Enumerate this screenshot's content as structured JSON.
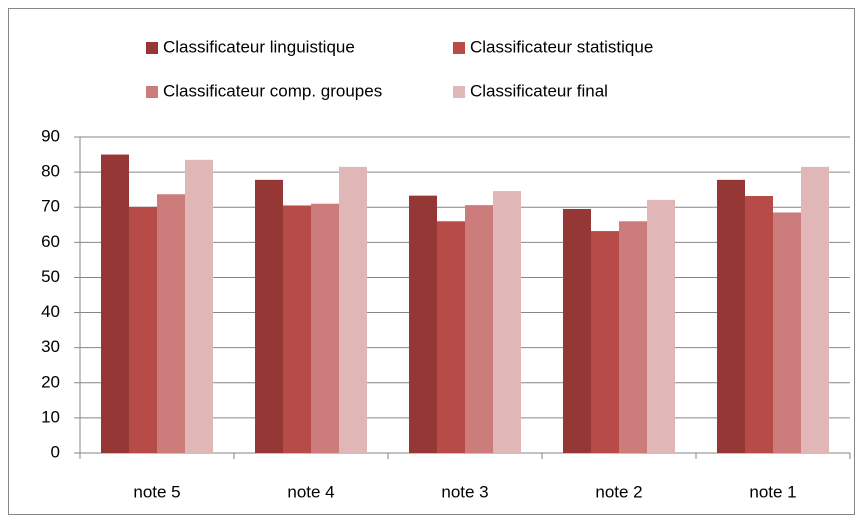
{
  "chart_data": {
    "type": "bar",
    "categories": [
      "note 5",
      "note 4",
      "note 3",
      "note 2",
      "note 1"
    ],
    "series": [
      {
        "name": "Classificateur linguistique",
        "color": "#953735",
        "values": [
          85,
          77.8,
          73.3,
          69.5,
          77.8
        ]
      },
      {
        "name": "Classificateur statistique",
        "color": "#b64b48",
        "values": [
          70.1,
          70.5,
          66,
          63.2,
          73.2
        ]
      },
      {
        "name": "Classificateur comp. groupes",
        "color": "#cc7d7b",
        "values": [
          73.7,
          71,
          70.6,
          66,
          68.5
        ]
      },
      {
        "name": "Classificateur final",
        "color": "#e0b6b6",
        "values": [
          83.5,
          81.5,
          74.6,
          72.1,
          81.5
        ]
      }
    ],
    "ylim": [
      0,
      90
    ],
    "yticks": [
      0,
      10,
      20,
      30,
      40,
      50,
      60,
      70,
      80,
      90
    ],
    "grid": true,
    "legend": "top"
  }
}
